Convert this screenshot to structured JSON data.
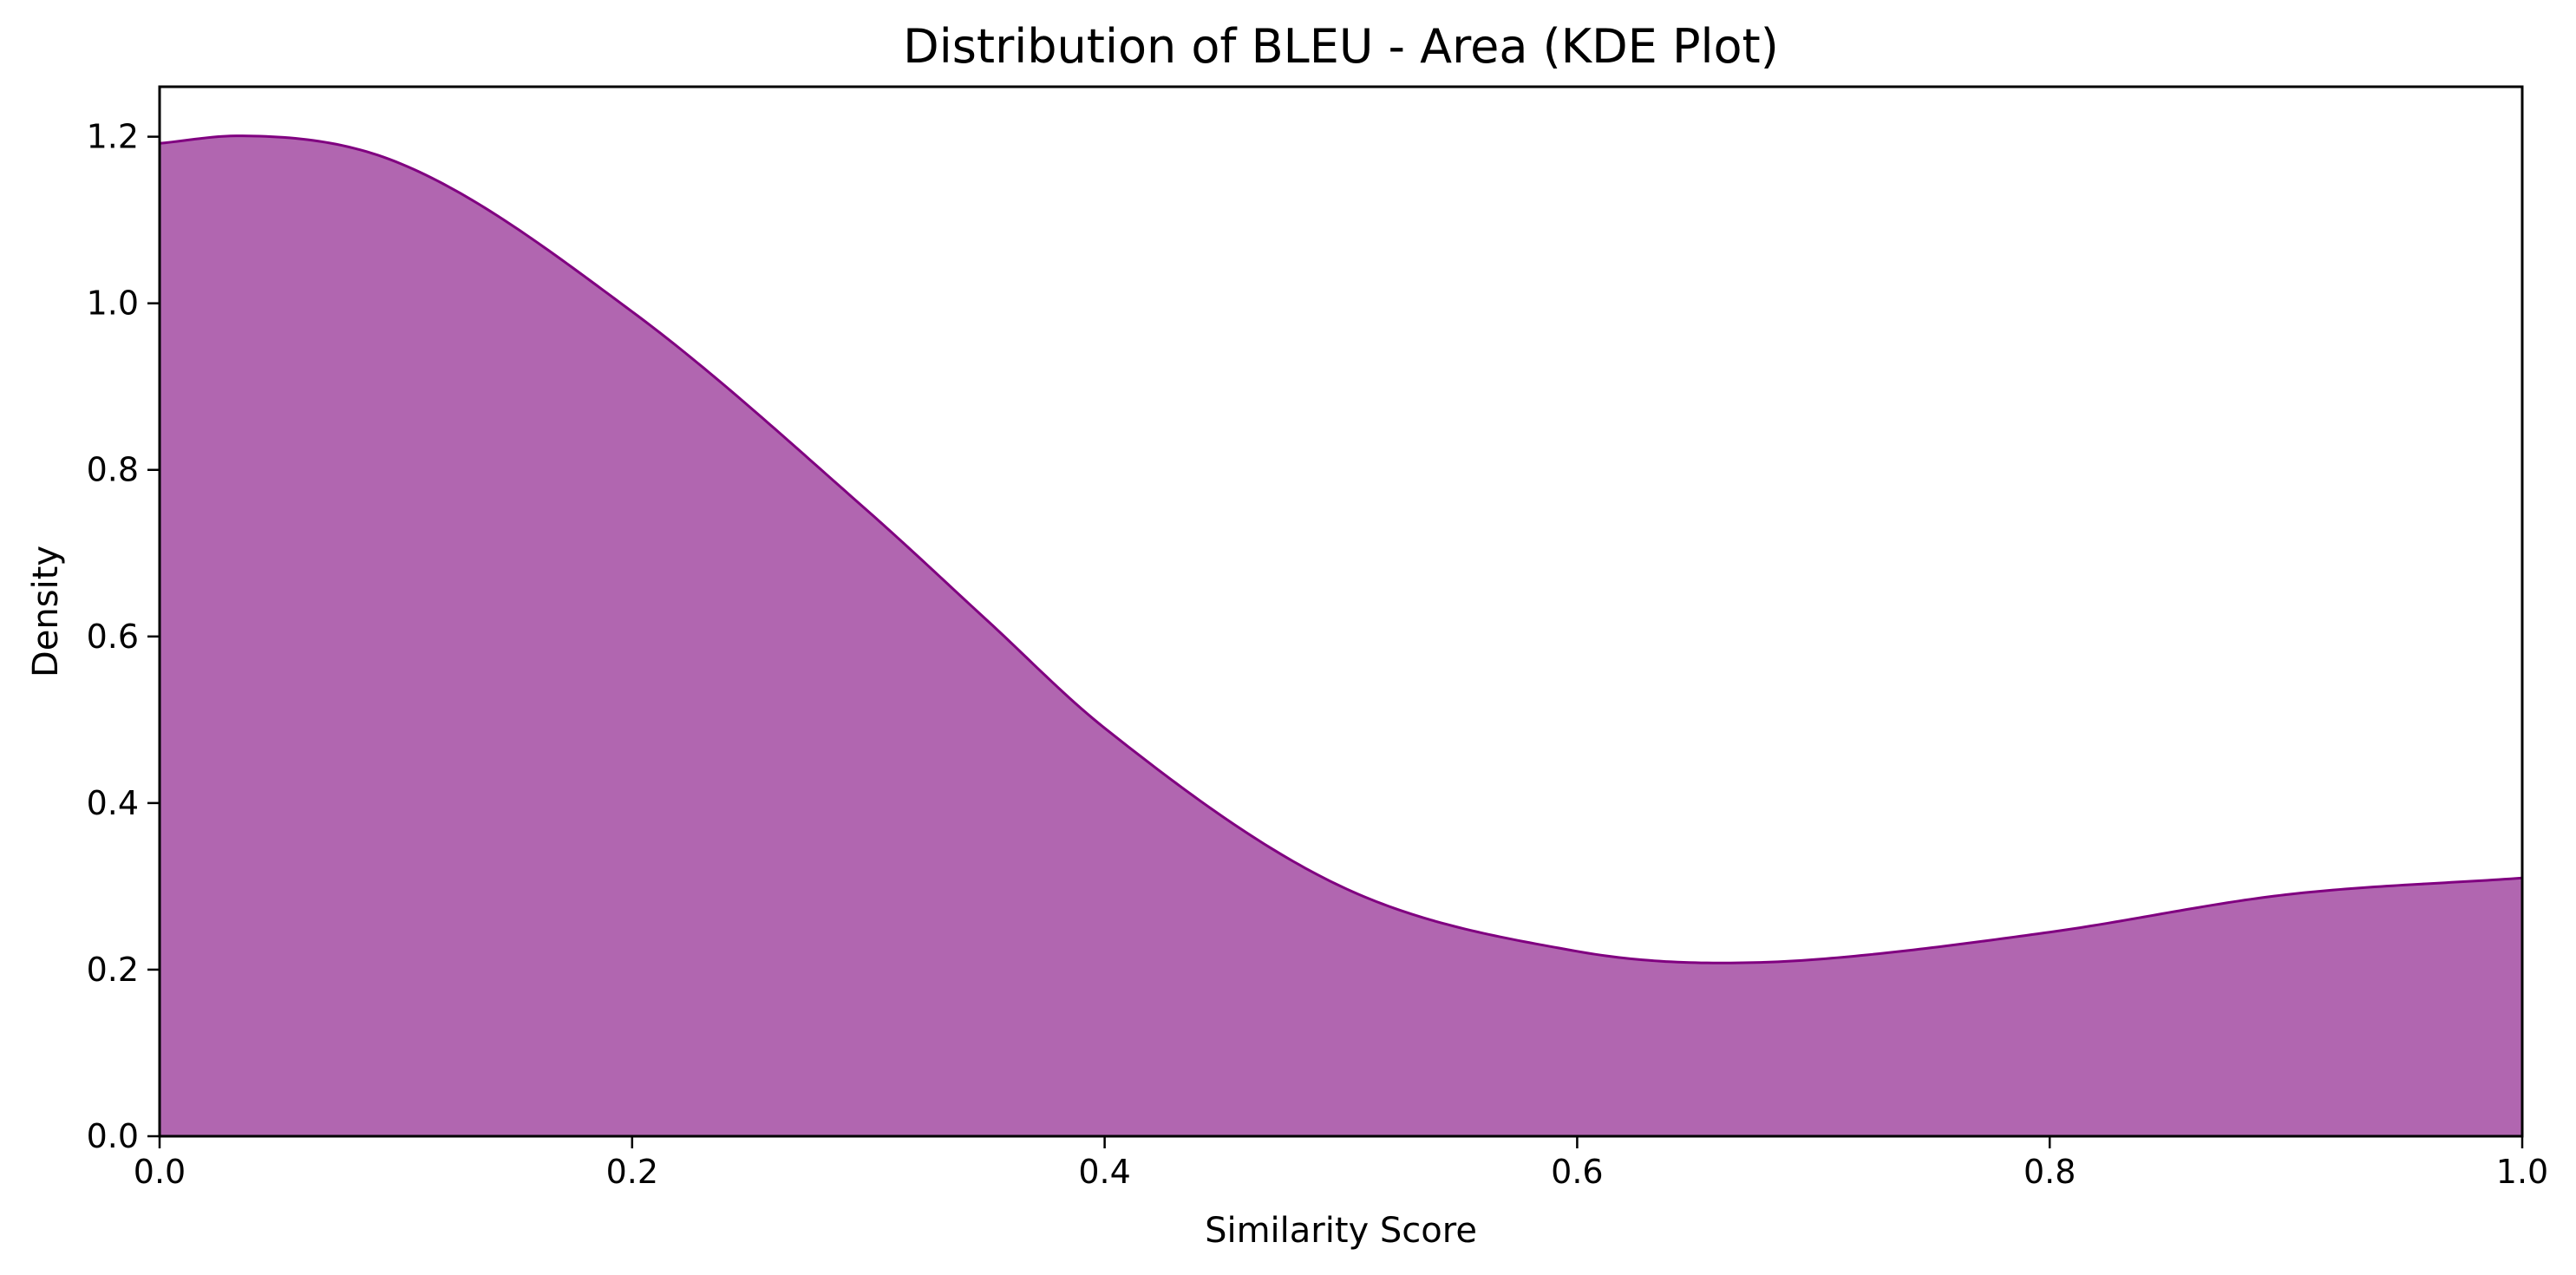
{
  "chart_data": {
    "type": "area",
    "title": "Distribution of BLEU - Area (KDE Plot)",
    "xlabel": "Similarity Score",
    "ylabel": "Density",
    "xlim": [
      0.0,
      1.0
    ],
    "ylim": [
      0.0,
      1.26
    ],
    "x_ticks": [
      0.0,
      0.2,
      0.4,
      0.6,
      0.8,
      1.0
    ],
    "x_tick_labels": [
      "0.0",
      "0.2",
      "0.4",
      "0.6",
      "0.8",
      "1.0"
    ],
    "y_ticks": [
      0.0,
      0.2,
      0.4,
      0.6,
      0.8,
      1.0,
      1.2
    ],
    "y_tick_labels": [
      "0.0",
      "0.2",
      "0.4",
      "0.6",
      "0.8",
      "1.0",
      "1.2"
    ],
    "grid": false,
    "legend": "none",
    "fill_color": "#b166b0",
    "line_color": "#800080",
    "series": [
      {
        "x": [
          0.0,
          0.033,
          0.1,
          0.2,
          0.3,
          0.35,
          0.4,
          0.5,
          0.6,
          0.66,
          0.7,
          0.8,
          0.9,
          1.0
        ],
        "y": [
          1.192,
          1.201,
          1.17,
          0.99,
          0.75,
          0.62,
          0.49,
          0.3,
          0.222,
          0.208,
          0.212,
          0.245,
          0.29,
          0.31
        ]
      }
    ]
  }
}
